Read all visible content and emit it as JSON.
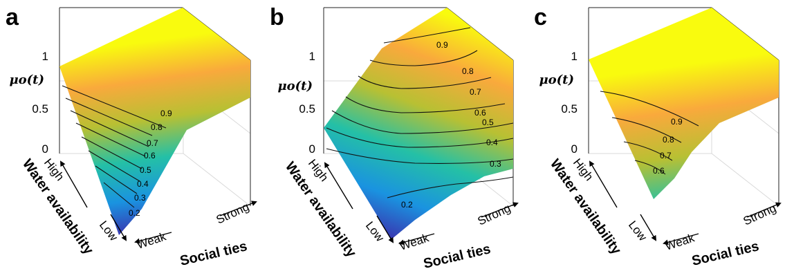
{
  "chart_data": [
    {
      "type": "surface",
      "panel": "a",
      "zlabel": "μo(t)",
      "zticks": [
        "0",
        "0.5",
        "1"
      ],
      "zlim": [
        0,
        1
      ],
      "x_axis": {
        "title": "Water availability",
        "low": "Low",
        "high": "High"
      },
      "y_axis": {
        "title": "Social ties",
        "low": "Weak",
        "high": "Strong"
      },
      "colormap": [
        "#3e26a8",
        "#1a93e0",
        "#24c0a6",
        "#b8c033",
        "#f9a93c",
        "#f9fb0e"
      ],
      "contour_levels": [
        "0.2",
        "0.3",
        "0.4",
        "0.5",
        "0.6",
        "0.7",
        "0.8",
        "0.9"
      ],
      "corner_values": {
        "low_weak": 0.02,
        "high_weak": 0.88,
        "low_strong": 1.0,
        "high_strong": 1.0
      }
    },
    {
      "type": "surface",
      "panel": "b",
      "zlabel": "μo(t)",
      "zticks": [
        "0",
        "0.5",
        "1"
      ],
      "zlim": [
        0,
        1
      ],
      "x_axis": {
        "title": "Water availability",
        "low": "Low",
        "high": "High"
      },
      "y_axis": {
        "title": "Social ties",
        "low": "Weak",
        "high": "Strong"
      },
      "colormap": [
        "#3e26a8",
        "#1a93e0",
        "#24c0a6",
        "#b8c033",
        "#f9a93c",
        "#f9fb0e"
      ],
      "contour_levels": [
        "0.2",
        "0.3",
        "0.4",
        "0.5",
        "0.6",
        "0.7",
        "0.8",
        "0.9"
      ],
      "corner_values": {
        "low_weak": 0.05,
        "high_weak": 0.22,
        "low_strong": 0.22,
        "high_strong": 1.0
      }
    },
    {
      "type": "surface",
      "panel": "c",
      "zlabel": "μo(t)",
      "zticks": [
        "0",
        "0.5",
        "1"
      ],
      "zlim": [
        0,
        1
      ],
      "x_axis": {
        "title": "Water availability",
        "low": "Low",
        "high": "High"
      },
      "y_axis": {
        "title": "Social ties",
        "low": "Weak",
        "high": "Strong"
      },
      "colormap": [
        "#3e26a8",
        "#1a93e0",
        "#24c0a6",
        "#b8c033",
        "#f9a93c",
        "#f9fb0e"
      ],
      "contour_levels": [
        "0.6",
        "0.7",
        "0.8",
        "0.9"
      ],
      "corner_values": {
        "low_weak": 0.55,
        "high_weak": 0.98,
        "low_strong": 1.0,
        "high_strong": 1.0
      }
    }
  ]
}
